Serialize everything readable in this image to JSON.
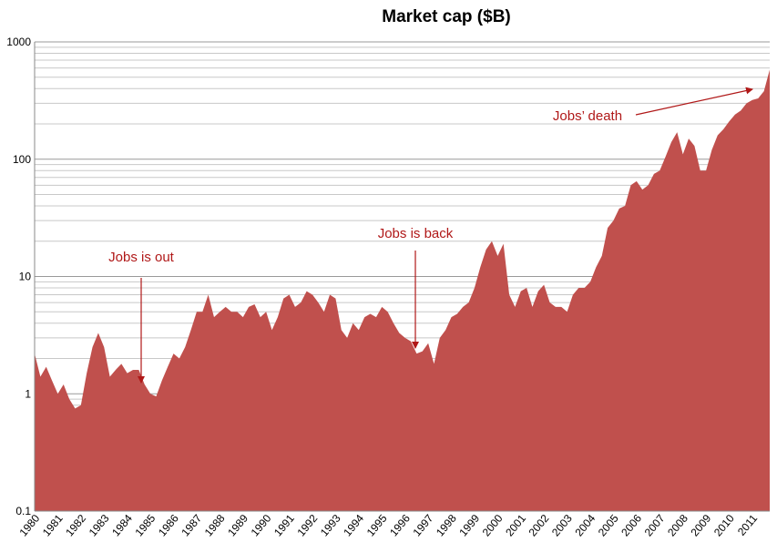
{
  "chart_data": {
    "type": "area",
    "title": "Market cap ($B)",
    "categories": [
      "1980",
      null,
      null,
      null,
      "1981",
      null,
      null,
      null,
      "1982",
      null,
      null,
      null,
      "1983",
      null,
      null,
      null,
      "1984",
      null,
      null,
      null,
      "1985",
      null,
      null,
      null,
      "1986",
      null,
      null,
      null,
      "1987",
      null,
      null,
      null,
      "1988",
      null,
      null,
      null,
      "1989",
      null,
      null,
      null,
      "1990",
      null,
      null,
      null,
      "1991",
      null,
      null,
      null,
      "1992",
      null,
      null,
      null,
      "1993",
      null,
      null,
      null,
      "1994",
      null,
      null,
      null,
      "1995",
      null,
      null,
      null,
      "1996",
      null,
      null,
      null,
      "1997",
      null,
      null,
      null,
      "1998",
      null,
      null,
      null,
      "1999",
      null,
      null,
      null,
      "2000",
      null,
      null,
      null,
      "2001",
      null,
      null,
      null,
      "2002",
      null,
      null,
      null,
      "2003",
      null,
      null,
      null,
      "2004",
      null,
      null,
      null,
      "2005",
      null,
      null,
      null,
      "2006",
      null,
      null,
      null,
      "2007",
      null,
      null,
      null,
      "2008",
      null,
      null,
      null,
      "2009",
      null,
      null,
      null,
      "2010",
      null,
      null,
      null,
      "2011",
      null,
      null,
      null
    ],
    "values": [
      2.2,
      1.4,
      1.7,
      1.3,
      1.0,
      1.2,
      0.9,
      0.75,
      0.8,
      1.5,
      2.5,
      3.3,
      2.5,
      1.4,
      1.6,
      1.8,
      1.5,
      1.6,
      1.6,
      1.2,
      1.0,
      0.95,
      1.3,
      1.7,
      2.2,
      2.0,
      2.5,
      3.5,
      5.0,
      5.0,
      7.0,
      4.5,
      5.0,
      5.5,
      5.0,
      5.0,
      4.5,
      5.5,
      5.8,
      4.5,
      5.0,
      3.5,
      4.5,
      6.5,
      7.0,
      5.5,
      6.0,
      7.5,
      7.0,
      6.0,
      5.0,
      7.0,
      6.5,
      3.5,
      3.0,
      4.0,
      3.5,
      4.5,
      4.8,
      4.5,
      5.5,
      5.0,
      4.0,
      3.3,
      3.0,
      2.8,
      2.2,
      2.3,
      2.7,
      1.8,
      3.0,
      3.5,
      4.5,
      4.8,
      5.5,
      6.0,
      8.0,
      12,
      17,
      20,
      15,
      19,
      7,
      5.5,
      7.5,
      8,
      5.5,
      7.5,
      8.5,
      6,
      5.5,
      5.5,
      5.0,
      7,
      8,
      8,
      9,
      12,
      15,
      26,
      30,
      38,
      40,
      60,
      65,
      55,
      60,
      75,
      80,
      105,
      140,
      170,
      110,
      150,
      130,
      80,
      80,
      120,
      160,
      180,
      210,
      240,
      260,
      300,
      320,
      330,
      380,
      580
    ],
    "color": "#c0504d",
    "log_scale": true,
    "grid": true,
    "minor_grid": true,
    "ylim": [
      0.1,
      1000
    ],
    "yticks": [
      0.1,
      1,
      10,
      100,
      1000
    ],
    "annotations": [
      {
        "text": "Jobs is out"
      },
      {
        "text": "Jobs is back"
      },
      {
        "text": "Jobs’ death"
      }
    ]
  }
}
